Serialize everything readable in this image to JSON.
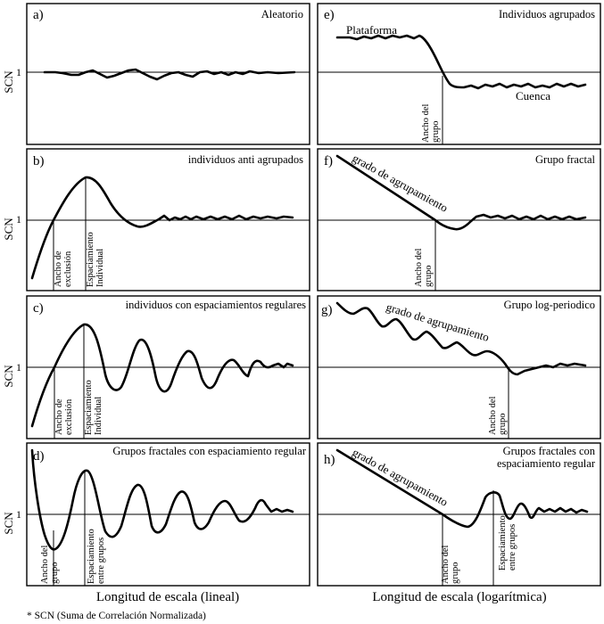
{
  "y_axis_label": "SCN",
  "reference_label": "1",
  "panels": {
    "a": {
      "letter": "a)",
      "title": "Aleatorio"
    },
    "b": {
      "letter": "b)",
      "title": "individuos anti agrupados",
      "v1": [
        "Ancho de",
        "exclusión"
      ],
      "v2": [
        "Espaciamiento",
        "Individual"
      ]
    },
    "c": {
      "letter": "c)",
      "title": "individuos con espaciamientos regulares",
      "v1": [
        "Ancho de",
        "exclusión"
      ],
      "v2": [
        "Espaciamiento",
        "Individual"
      ]
    },
    "d": {
      "letter": "d)",
      "title": "Grupos fractales con espaciamiento regular",
      "v1": [
        "Ancho del",
        "grupo"
      ],
      "v2": [
        "Espaciamiento",
        "entre grupos"
      ]
    },
    "e": {
      "letter": "e)",
      "title": "Individuos agrupados",
      "plataforma": "Plataforma",
      "cuenca": "Cuenca",
      "v1": [
        "Ancho del",
        "grupo"
      ]
    },
    "f": {
      "letter": "f)",
      "title": "Grupo fractal",
      "slope": "grado de agrupamiento",
      "v1": [
        "Ancho del",
        "grupo"
      ]
    },
    "g": {
      "letter": "g)",
      "title": "Grupo log-periodico",
      "slope": "grado de agrupamiento",
      "v1": [
        "Ancho del",
        "grupo"
      ]
    },
    "h": {
      "letter": "h)",
      "title1": "Grupos fractales con",
      "title2": "espaciamiento regular",
      "slope": "grado de agrupamiento",
      "v1": [
        "Ancho del",
        "grupo"
      ],
      "v2": [
        "Espaciamiento",
        "entre grupos"
      ]
    }
  },
  "x_label_left": "Longitud de escala (lineal)",
  "x_label_right": "Longitud de escala (logarítmica)",
  "footnote": "* SCN (Suma de Correlación Normalizada)"
}
